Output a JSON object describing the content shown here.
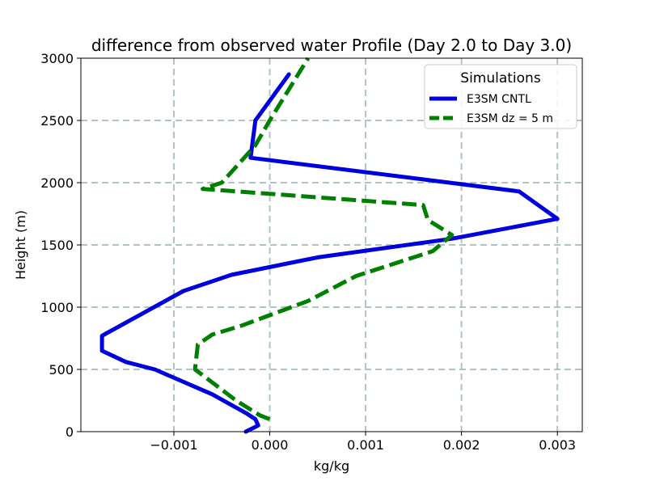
{
  "chart_data": {
    "type": "line",
    "title": "difference from observed water Profile (Day 2.0 to Day 3.0)",
    "xlabel": "kg/kg",
    "ylabel": "Height (m)",
    "xlim": [
      -0.00197,
      0.00326
    ],
    "ylim": [
      0,
      3000
    ],
    "grid": true,
    "x_ticks": [
      -0.001,
      0.0,
      0.001,
      0.002,
      0.003
    ],
    "x_tick_labels": [
      "−0.001",
      "0.000",
      "0.001",
      "0.002",
      "0.003"
    ],
    "y_ticks": [
      0,
      500,
      1000,
      1500,
      2000,
      2500,
      3000
    ],
    "y_tick_labels": [
      "0",
      "500",
      "1000",
      "1500",
      "2000",
      "2500",
      "3000"
    ],
    "legend": {
      "title": "Simulations",
      "placement": "upper-right"
    },
    "series": [
      {
        "name": "E3SM CNTL",
        "color": "#0000dd",
        "style": "solid",
        "points": [
          [
            -0.00025,
            0
          ],
          [
            -0.00012,
            50
          ],
          [
            -0.00015,
            100
          ],
          [
            -0.00025,
            150
          ],
          [
            -0.0006,
            300
          ],
          [
            -0.0012,
            500
          ],
          [
            -0.0015,
            560
          ],
          [
            -0.00175,
            650
          ],
          [
            -0.00175,
            770
          ],
          [
            -0.0009,
            1130
          ],
          [
            -0.0004,
            1260
          ],
          [
            0.0005,
            1400
          ],
          [
            0.0019,
            1550
          ],
          [
            0.003,
            1710
          ],
          [
            0.0026,
            1930
          ],
          [
            -0.0002,
            2200
          ],
          [
            -0.00015,
            2500
          ],
          [
            0.0002,
            2870
          ]
        ]
      },
      {
        "name": "E3SM dz = 5 m",
        "color": "#008000",
        "style": "dashed",
        "points": [
          [
            0.0,
            100
          ],
          [
            -0.0001,
            130
          ],
          [
            -0.00035,
            250
          ],
          [
            -0.00078,
            500
          ],
          [
            -0.00075,
            700
          ],
          [
            -0.0006,
            780
          ],
          [
            -0.0003,
            850
          ],
          [
            0.0004,
            1050
          ],
          [
            0.0009,
            1250
          ],
          [
            0.0017,
            1450
          ],
          [
            0.0019,
            1580
          ],
          [
            0.00165,
            1700
          ],
          [
            0.0016,
            1820
          ],
          [
            -0.0007,
            1950
          ],
          [
            -0.0005,
            2000
          ],
          [
            -0.00015,
            2300
          ],
          [
            0.0,
            2500
          ],
          [
            0.0004,
            3000
          ]
        ]
      }
    ]
  }
}
